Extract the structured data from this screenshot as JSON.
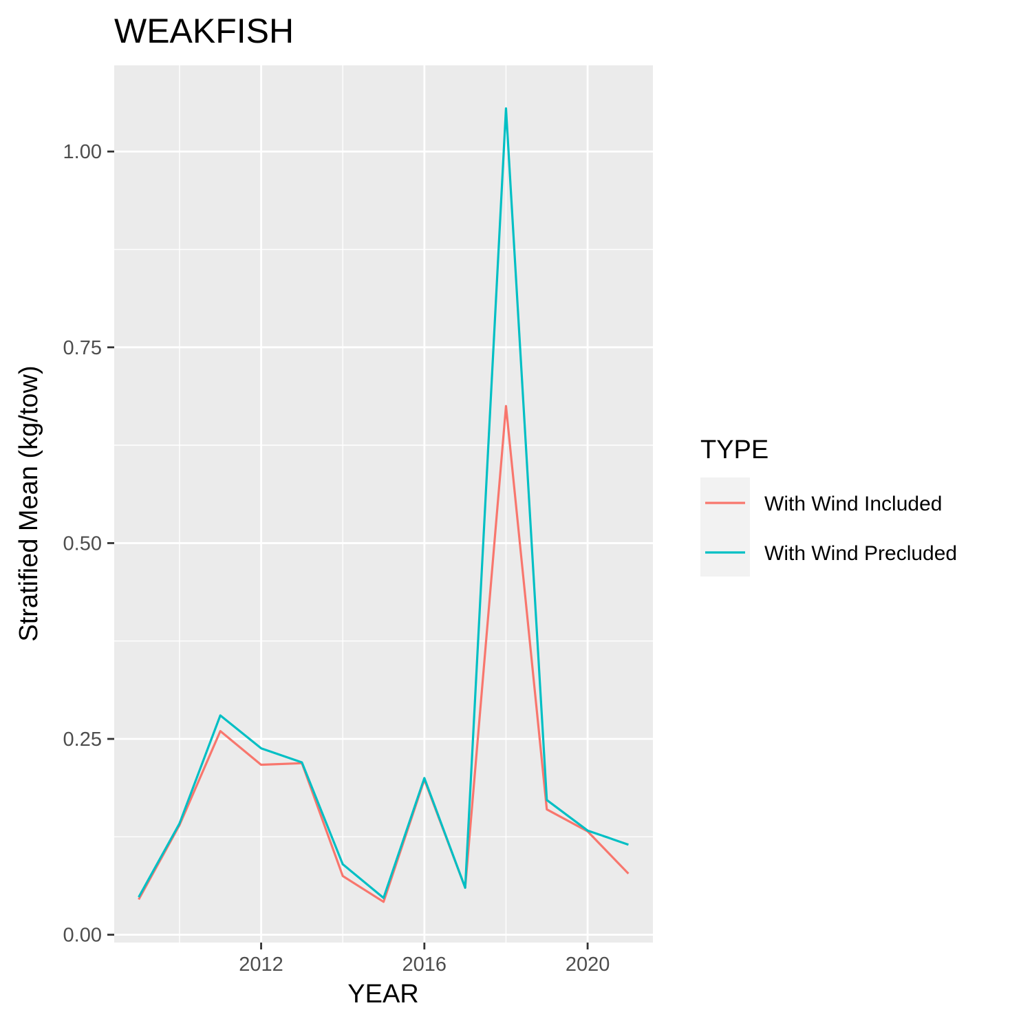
{
  "chart_data": {
    "type": "line",
    "title": "WEAKFISH",
    "xlabel": "YEAR",
    "ylabel": "Stratified Mean (kg/tow)",
    "x": [
      2009,
      2010,
      2011,
      2012,
      2013,
      2014,
      2015,
      2016,
      2017,
      2018,
      2019,
      2020,
      2021
    ],
    "xlim": [
      2008.4,
      2021.6
    ],
    "ylim": [
      -0.01,
      1.11
    ],
    "x_ticks": [
      2012,
      2016,
      2020
    ],
    "x_minor_ticks": [
      2010,
      2014,
      2018
    ],
    "y_ticks": [
      0.0,
      0.25,
      0.5,
      0.75,
      1.0
    ],
    "y_tick_labels": [
      "0.00",
      "0.25",
      "0.50",
      "0.75",
      "1.00"
    ],
    "y_minor_ticks": [
      0.125,
      0.375,
      0.625,
      0.875
    ],
    "grid": true,
    "legend": {
      "title": "TYPE",
      "position": "right"
    },
    "series": [
      {
        "name": "With Wind Included",
        "color": "#F8766D",
        "values": [
          0.045,
          0.14,
          0.26,
          0.217,
          0.219,
          0.075,
          0.042,
          0.198,
          0.06,
          0.675,
          0.16,
          0.132,
          0.078
        ]
      },
      {
        "name": "With Wind Precluded",
        "color": "#00BFC4",
        "values": [
          0.048,
          0.142,
          0.28,
          0.238,
          0.22,
          0.09,
          0.047,
          0.2,
          0.06,
          1.055,
          0.172,
          0.133,
          0.115
        ]
      }
    ]
  }
}
